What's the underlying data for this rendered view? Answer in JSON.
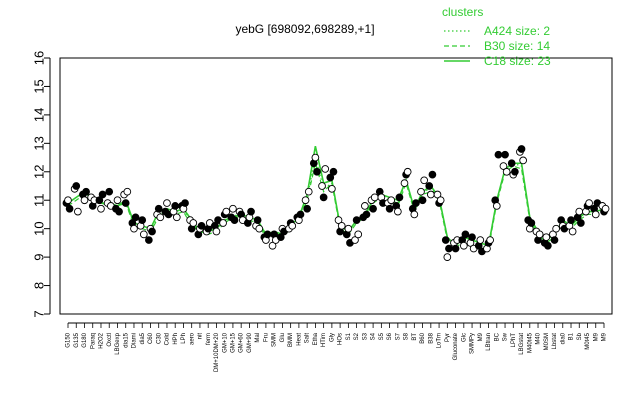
{
  "chart_data": {
    "type": "line",
    "title": "yebG [698092,698289,+1]",
    "xlabel": "",
    "ylabel": "",
    "ylim": [
      7,
      16
    ],
    "yticks": [
      7,
      8,
      9,
      10,
      11,
      12,
      13,
      14,
      15,
      16
    ],
    "grid": false,
    "legend": {
      "title": "clusters",
      "placement": "top-right",
      "entries": [
        {
          "label": "A424 size: 2",
          "style": "dotted"
        },
        {
          "label": "B30 size: 14",
          "style": "dashed"
        },
        {
          "label": "C18 size: 23",
          "style": "solid"
        }
      ]
    },
    "colors": {
      "series": "#33cc33",
      "points_filled": "#000000",
      "points_open": "#ffffff",
      "axis": "#000000"
    },
    "categories": [
      "G150",
      "G135",
      "G180",
      "Paraq",
      "H2O2",
      "Oxctl",
      "LBGexp",
      "dia15",
      "Diami",
      "dia5",
      "C60",
      "C30",
      "Cold",
      "HPh",
      "LPh",
      "aero",
      "nit",
      "ferm",
      "DM+10DM+20",
      "GM+10",
      "GM+15",
      "GM+60",
      "GM+90",
      "Mal",
      "Fru",
      "SMM",
      "Glu",
      "BMM",
      "Heat",
      "Salt",
      "Etha",
      "HTim",
      "Gly",
      "HOs",
      "S1",
      "S2",
      "S3",
      "S4",
      "S5",
      "S6",
      "S7",
      "S8",
      "BT",
      "B60",
      "B38",
      "LoTm",
      "Pyr",
      "Gluconate",
      "Glc",
      "SMMPy",
      "M9",
      "LBtran",
      "BC",
      "Sw",
      "LPhT",
      "LBGstat",
      "M40t45",
      "M40",
      "M0SM",
      "Lbstat",
      "dia0",
      "B1",
      "Sb",
      "M0t45",
      "M9",
      "M9"
    ],
    "series": [
      {
        "name": "",
        "style": "solid",
        "values": [
          10.9,
          11.1,
          11.3,
          11.0,
          10.9,
          10.9,
          10.8,
          11.0,
          10.2,
          10.1,
          10.0,
          10.6,
          10.7,
          10.6,
          10.7,
          10.3,
          9.9,
          9.9,
          10.0,
          10.3,
          10.4,
          10.5,
          10.4,
          10.3,
          9.8,
          9.9,
          9.8,
          10.1,
          10.4,
          11.2,
          12.9,
          11.6,
          11.7,
          10.1,
          9.9,
          10.3,
          10.5,
          11.0,
          11.2,
          11.1,
          11.0,
          11.7,
          10.7,
          11.3,
          11.5,
          11.1,
          9.7,
          9.4,
          9.7,
          9.6,
          9.5,
          9.4,
          11.0,
          12.1,
          12.3,
          12.3,
          10.4,
          9.9,
          9.6,
          9.8,
          10.3,
          10.1,
          10.4,
          10.6,
          10.6,
          10.7
        ]
      },
      {
        "name": "",
        "style": "dashed",
        "values": [
          10.8,
          11.0,
          11.2,
          11.1,
          10.9,
          10.8,
          10.8,
          10.9,
          10.1,
          10.0,
          9.9,
          10.4,
          10.6,
          10.5,
          10.6,
          10.1,
          9.9,
          9.8,
          9.9,
          10.2,
          10.4,
          10.4,
          10.3,
          10.2,
          9.7,
          9.8,
          9.7,
          10.0,
          10.3,
          11.0,
          12.3,
          11.3,
          11.6,
          10.0,
          9.8,
          10.2,
          10.4,
          10.9,
          11.1,
          10.9,
          10.8,
          11.6,
          10.6,
          11.2,
          11.3,
          11.0,
          9.6,
          9.3,
          9.6,
          9.5,
          9.4,
          9.3,
          10.9,
          12.0,
          12.2,
          12.1,
          10.3,
          9.8,
          9.5,
          9.7,
          10.2,
          10.0,
          10.3,
          10.5,
          10.5,
          10.6
        ]
      },
      {
        "name": "",
        "style": "dotted",
        "values": [
          10.9,
          11.1,
          11.3,
          11.1,
          10.9,
          10.9,
          10.8,
          10.9,
          10.2,
          10.0,
          9.9,
          10.5,
          10.6,
          10.6,
          10.7,
          10.2,
          9.9,
          9.9,
          10.0,
          10.3,
          10.5,
          10.4,
          10.4,
          10.3,
          9.8,
          9.8,
          9.8,
          10.1,
          10.4,
          11.1,
          12.5,
          11.4,
          11.6,
          10.1,
          9.9,
          10.3,
          10.5,
          11.0,
          11.2,
          11.0,
          10.9,
          11.7,
          10.7,
          11.3,
          11.4,
          11.1,
          9.7,
          9.4,
          9.7,
          9.6,
          9.5,
          9.4,
          11.0,
          12.1,
          12.3,
          12.2,
          10.4,
          9.9,
          9.6,
          9.8,
          10.3,
          10.1,
          10.4,
          10.6,
          10.6,
          10.7
        ]
      }
    ],
    "points": [
      [
        10.9,
        11.0,
        10.7
      ],
      [
        11.4,
        11.5,
        10.6
      ],
      [
        11.2,
        11.0,
        11.3
      ],
      [
        11.1,
        10.8,
        11.0
      ],
      [
        11.0,
        10.7,
        11.2
      ],
      [
        10.9,
        11.3,
        10.8
      ],
      [
        10.7,
        11.0,
        10.6
      ],
      [
        11.2,
        10.9,
        11.3
      ],
      [
        10.2,
        10.0,
        10.4
      ],
      [
        10.1,
        10.3,
        9.8
      ],
      [
        9.6,
        10.0,
        9.9
      ],
      [
        10.5,
        10.7,
        10.4
      ],
      [
        10.6,
        10.9,
        10.5
      ],
      [
        10.6,
        10.8,
        10.4
      ],
      [
        10.8,
        10.7,
        10.9
      ],
      [
        10.3,
        10.0,
        10.2
      ],
      [
        9.8,
        10.0,
        10.1
      ],
      [
        9.9,
        10.0,
        10.2
      ],
      [
        10.1,
        9.9,
        10.3
      ],
      [
        10.2,
        10.5,
        10.6
      ],
      [
        10.4,
        10.7,
        10.3
      ],
      [
        10.6,
        10.5,
        10.3
      ],
      [
        10.2,
        10.4,
        10.6
      ],
      [
        10.1,
        10.3,
        10.0
      ],
      [
        9.7,
        9.6,
        9.8
      ],
      [
        9.4,
        9.8,
        9.6
      ],
      [
        9.7,
        10.0,
        9.9
      ],
      [
        10.0,
        10.2,
        10.1
      ],
      [
        10.4,
        10.3,
        10.5
      ],
      [
        11.0,
        10.7,
        11.3
      ],
      [
        12.3,
        12.5,
        12.0
      ],
      [
        11.5,
        11.1,
        12.1
      ],
      [
        11.8,
        11.4,
        12.0
      ],
      [
        10.3,
        9.9,
        10.1
      ],
      [
        9.8,
        10.0,
        9.5
      ],
      [
        9.6,
        10.3,
        9.8
      ],
      [
        10.4,
        10.8,
        10.5
      ],
      [
        11.0,
        10.7,
        11.1
      ],
      [
        11.3,
        11.1,
        10.9
      ],
      [
        10.9,
        10.7,
        11.0
      ],
      [
        10.8,
        10.6,
        11.1
      ],
      [
        11.6,
        11.9,
        12.0
      ],
      [
        10.7,
        10.5,
        10.9
      ],
      [
        11.3,
        11.0,
        11.7
      ],
      [
        11.5,
        11.2,
        11.9
      ],
      [
        11.2,
        10.9,
        11.0
      ],
      [
        9.6,
        9.0,
        9.3
      ],
      [
        9.5,
        9.3,
        9.6
      ],
      [
        9.6,
        9.4,
        9.8
      ],
      [
        9.5,
        9.7,
        9.3
      ],
      [
        9.4,
        9.6,
        9.2
      ],
      [
        9.3,
        9.5,
        9.6
      ],
      [
        11.0,
        10.8,
        12.6
      ],
      [
        12.2,
        12.6,
        12.0
      ],
      [
        12.3,
        11.9,
        12.0
      ],
      [
        12.7,
        12.8,
        12.4
      ],
      [
        10.3,
        10.0,
        10.2
      ],
      [
        9.9,
        9.6,
        9.8
      ],
      [
        9.5,
        9.7,
        9.4
      ],
      [
        9.8,
        9.6,
        10.0
      ],
      [
        10.3,
        10.1,
        10.0
      ],
      [
        10.1,
        10.3,
        9.9
      ],
      [
        10.4,
        10.6,
        10.2
      ],
      [
        10.6,
        10.8,
        10.9
      ],
      [
        10.7,
        10.5,
        10.9
      ],
      [
        10.8,
        10.6,
        10.7
      ]
    ]
  }
}
